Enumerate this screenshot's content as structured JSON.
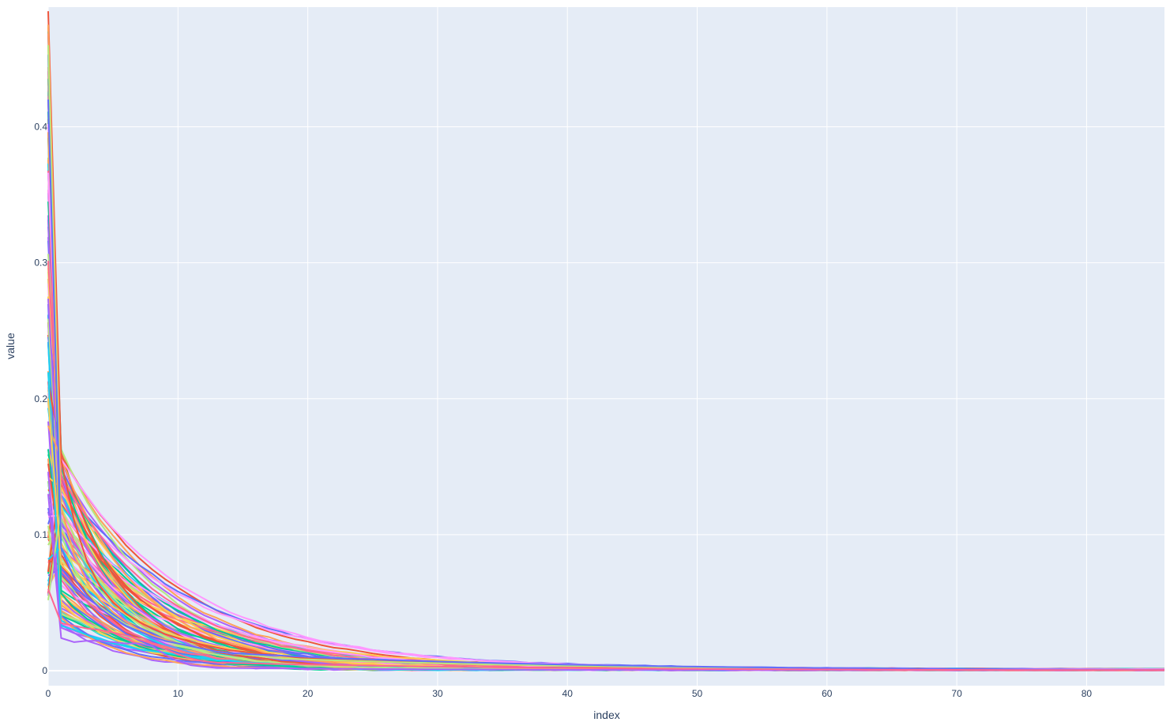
{
  "chart_data": {
    "type": "line",
    "xlabel": "index",
    "ylabel": "value",
    "xlim": [
      0,
      86
    ],
    "ylim": [
      -0.011,
      0.488
    ],
    "xticks": [
      0,
      10,
      20,
      30,
      40,
      50,
      60,
      70,
      80
    ],
    "yticks": [
      0,
      0.1,
      0.2,
      0.3,
      0.4
    ],
    "ytick_labels": [
      "0",
      "0.1",
      "0.2",
      "0.3",
      "0.4"
    ],
    "xtick_labels": [
      "0",
      "10",
      "20",
      "30",
      "40",
      "50",
      "60",
      "70",
      "80"
    ],
    "grid": true,
    "legend": "none",
    "background": "#E5ECF6",
    "colors": [
      "#636EFA",
      "#EF553B",
      "#00CC96",
      "#AB63FA",
      "#FFA15A",
      "#19D3F3",
      "#FF6692",
      "#B6E880",
      "#FF97FF",
      "#FECB52"
    ],
    "series_count": 120,
    "series_model": "each series decays from a start value at index 0 toward ~0 by index 86",
    "series": [
      {
        "values": [
          0.485,
          0.155,
          0.11,
          0.08,
          0.062,
          0.05,
          0.042,
          0.036,
          0.031,
          0.027,
          0.024,
          0.021,
          0.019,
          0.017,
          0.015,
          0.014,
          0.013,
          0.012,
          0.011,
          0.01,
          0.009,
          0.0085,
          0.008
        ]
      },
      {
        "values": [
          0.475,
          0.12,
          0.085,
          0.065,
          0.052,
          0.043,
          0.036,
          0.03,
          0.026,
          0.023,
          0.02,
          0.018,
          0.016,
          0.014,
          0.013,
          0.012,
          0.011,
          0.01,
          0.009,
          0.0085,
          0.008
        ]
      },
      {
        "values": [
          0.46,
          0.1,
          0.075,
          0.058,
          0.047,
          0.04,
          0.034,
          0.029,
          0.025,
          0.022,
          0.019,
          0.017,
          0.015,
          0.014,
          0.013,
          0.012,
          0.011,
          0.01,
          0.009
        ]
      },
      {
        "values": [
          0.42,
          0.09,
          0.068,
          0.055,
          0.046,
          0.039,
          0.033,
          0.029,
          0.025,
          0.022,
          0.02,
          0.018,
          0.016,
          0.014,
          0.013
        ]
      },
      {
        "values": [
          0.13,
          0.024,
          0.021,
          0.022,
          0.022,
          0.021,
          0.02,
          0.02,
          0.018,
          0.012,
          0.007,
          0.004,
          0.003,
          0.002,
          0.002
        ]
      },
      {
        "values": [
          0.06,
          0.035,
          0.033,
          0.031,
          0.03,
          0.028,
          0.026,
          0.023,
          0.02,
          0.016,
          0.012,
          0.009,
          0.007,
          0.006
        ]
      }
    ]
  }
}
